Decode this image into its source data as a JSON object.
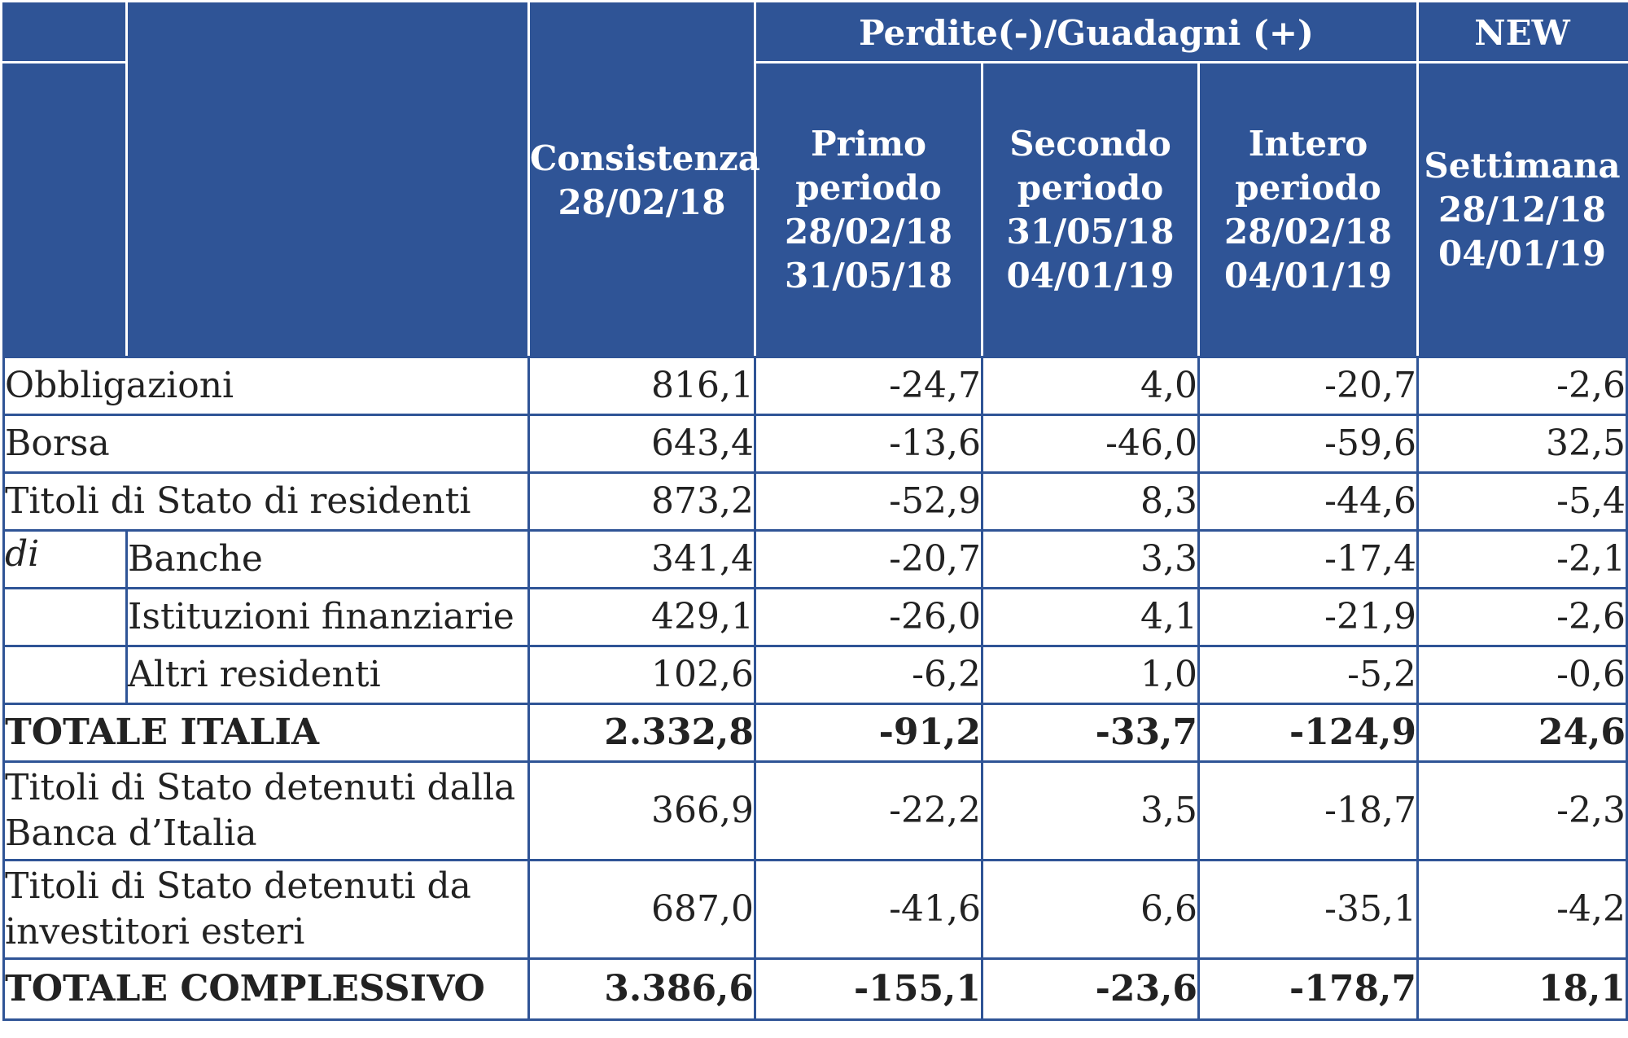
{
  "header": {
    "group_label": "Perdite(-)/Guadagni (+)",
    "new_label": "NEW",
    "consistenza": [
      "Consistenza",
      "28/02/18"
    ],
    "primo": [
      "Primo",
      "periodo",
      "28/02/18",
      "31/05/18"
    ],
    "secondo": [
      "Secondo",
      "periodo",
      "31/05/18",
      "04/01/19"
    ],
    "intero": [
      "Intero",
      "periodo",
      "28/02/18",
      "04/01/19"
    ],
    "settimana": [
      "Settimana",
      "28/12/18",
      "04/01/19"
    ]
  },
  "rows": [
    {
      "label": "Obbligazioni",
      "values": [
        "816,1",
        "-24,7",
        "4,0",
        "-20,7",
        "-2,6"
      ]
    },
    {
      "label": "Borsa",
      "values": [
        "643,4",
        "-13,6",
        "-46,0",
        "-59,6",
        "32,5"
      ]
    },
    {
      "label": "Titoli di Stato di residenti",
      "values": [
        "873,2",
        "-52,9",
        "8,3",
        "-44,6",
        "-5,4"
      ]
    },
    {
      "prefix": "di",
      "label": "Banche",
      "values": [
        "341,4",
        "-20,7",
        "3,3",
        "-17,4",
        "-2,1"
      ]
    },
    {
      "label": "Istituzioni finanziarie",
      "values": [
        "429,1",
        "-26,0",
        "4,1",
        "-21,9",
        "-2,6"
      ]
    },
    {
      "label": "Altri residenti",
      "values": [
        "102,6",
        "-6,2",
        "1,0",
        "-5,2",
        "-0,6"
      ]
    },
    {
      "label": "TOTALE ITALIA",
      "values": [
        "2.332,8",
        "-91,2",
        "-33,7",
        "-124,9",
        "24,6"
      ]
    },
    {
      "label": "Titoli di Stato detenuti dalla Banca d’Italia",
      "values": [
        "366,9",
        "-22,2",
        "3,5",
        "-18,7",
        "-2,3"
      ]
    },
    {
      "label": "Titoli di Stato detenuti da investitori esteri",
      "values": [
        "687,0",
        "-41,6",
        "6,6",
        "-35,1",
        "-4,2"
      ]
    },
    {
      "label": "TOTALE COMPLESSIVO",
      "values": [
        "3.386,6",
        "-155,1",
        "-23,6",
        "-178,7",
        "18,1"
      ]
    }
  ]
}
